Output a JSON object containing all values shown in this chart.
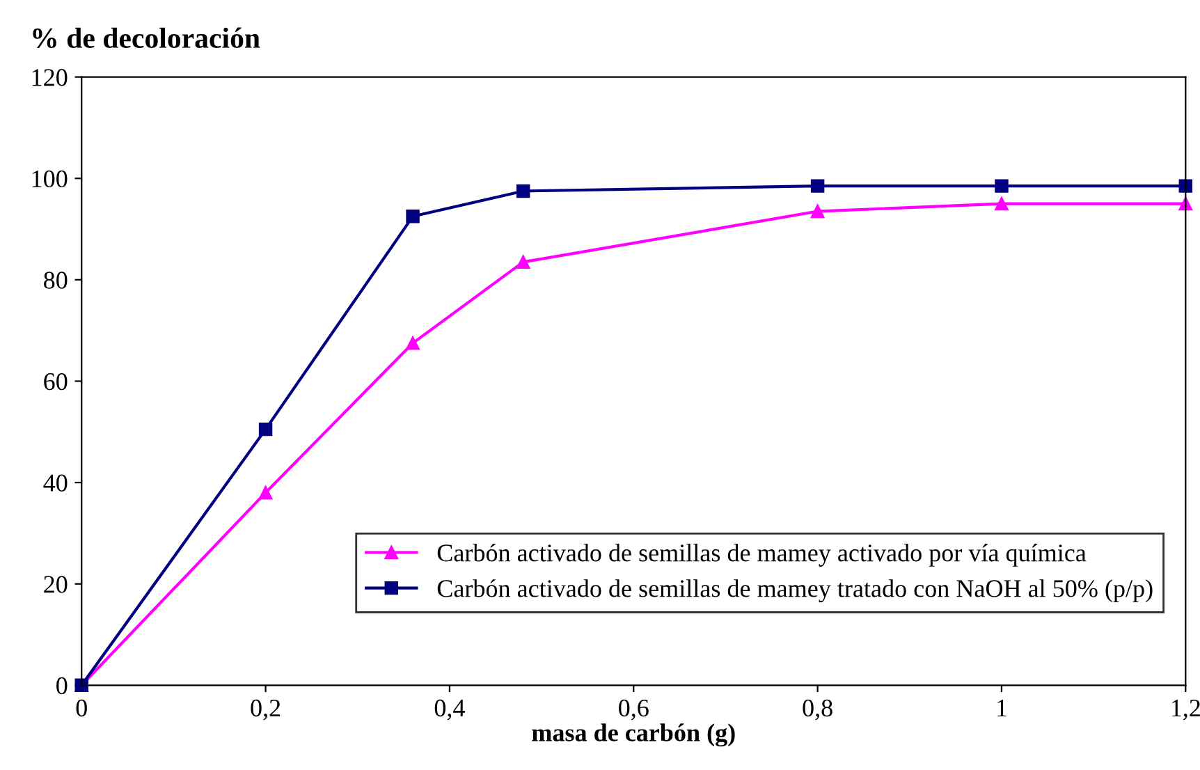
{
  "chart_data": {
    "type": "line",
    "ylabel": "% de decoloración",
    "xlabel": "masa de carbón (g)",
    "xlim": [
      0,
      1.2
    ],
    "xticks": [
      0,
      {
        "value": 0.2,
        "label": "0,2"
      },
      {
        "value": 0.4,
        "label": "0,4"
      },
      {
        "value": 0.6,
        "label": "0,6"
      },
      {
        "value": 0.8,
        "label": "0,8"
      },
      1,
      {
        "value": 1.2,
        "label": "1,2"
      }
    ],
    "ylim": [
      0,
      120
    ],
    "yticks": [
      0,
      20,
      40,
      60,
      80,
      100,
      120
    ],
    "grid": false,
    "legend": "bottom right",
    "series": [
      {
        "name": "Carbón activado de semillas de mamey activado por vía química",
        "color": "#ff00ff",
        "marker": "triangle",
        "x": [
          0,
          0.2,
          0.36,
          0.48,
          0.8,
          1.0,
          1.2
        ],
        "values": [
          0,
          38,
          67.5,
          83.5,
          93.5,
          95,
          95
        ]
      },
      {
        "name": "Carbón activado de semillas de mamey tratado con NaOH al 50% (p/p)",
        "color": "#000080",
        "marker": "square",
        "x": [
          0,
          0.2,
          0.36,
          0.48,
          0.8,
          1.0,
          1.2
        ],
        "values": [
          0,
          50.5,
          92.5,
          97.5,
          98.5,
          98.5,
          98.5
        ]
      }
    ]
  }
}
